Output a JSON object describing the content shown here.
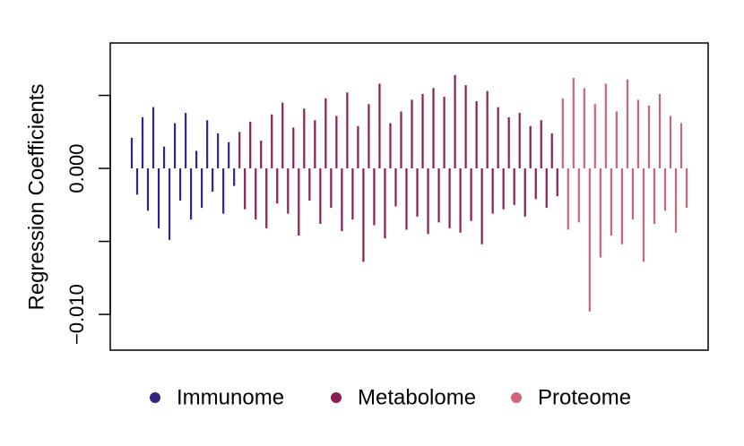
{
  "chart_data": {
    "type": "spike",
    "y_label": "Regression Coefficients",
    "ylim": [
      -0.01245,
      0.00859
    ],
    "yticks": [
      {
        "value": -0.01,
        "label": "−0.010"
      },
      {
        "value": 0,
        "label": "0.000"
      }
    ],
    "minor_yticks": [
      -0.005,
      0.005
    ],
    "series": [
      {
        "name": "Immunome",
        "color": "#312783",
        "values": [
          0.0021,
          -0.0018,
          0.0035,
          -0.0029,
          0.0042,
          -0.0041,
          0.0015,
          -0.0049,
          0.0031,
          -0.0022,
          0.0038,
          -0.0035,
          0.0012,
          -0.0027,
          0.0033,
          -0.0016,
          0.0024,
          -0.0031,
          0.0018,
          -0.0012
        ]
      },
      {
        "name": "Metabolome",
        "color": "#8a1f52",
        "values": [
          0.0025,
          -0.0028,
          0.0032,
          -0.0035,
          0.0019,
          -0.0041,
          0.0037,
          -0.0024,
          0.0045,
          -0.0031,
          0.0028,
          -0.0046,
          0.0041,
          -0.0022,
          0.0033,
          -0.0038,
          0.0048,
          -0.0027,
          0.0036,
          -0.0043,
          0.0052,
          -0.0035,
          0.0029,
          -0.0064,
          0.0044,
          -0.0039,
          0.0058,
          -0.0048,
          0.0031,
          -0.0026,
          0.0039,
          -0.0042,
          0.0047,
          -0.0033,
          0.0051,
          -0.0045,
          0.0055,
          -0.0037,
          0.0049,
          -0.0041,
          0.0064,
          -0.0044,
          0.0057,
          -0.0036,
          0.0046,
          -0.0052,
          0.0053,
          -0.0031,
          0.0042,
          -0.0028,
          0.0035,
          -0.0025,
          0.0038,
          -0.0033,
          0.0029,
          -0.0021,
          0.0033,
          -0.0027,
          0.0024,
          -0.0019
        ]
      },
      {
        "name": "Proteome",
        "color": "#cc6677",
        "values": [
          0.0048,
          -0.0042,
          0.0062,
          -0.0037,
          0.0055,
          -0.0098,
          0.0044,
          -0.0061,
          0.0058,
          -0.0046,
          0.0039,
          -0.0052,
          0.0061,
          -0.0035,
          0.0047,
          -0.0064,
          0.0043,
          -0.0038,
          0.0051,
          -0.0029,
          0.0036,
          -0.0044,
          0.0031,
          -0.0027
        ]
      }
    ]
  }
}
